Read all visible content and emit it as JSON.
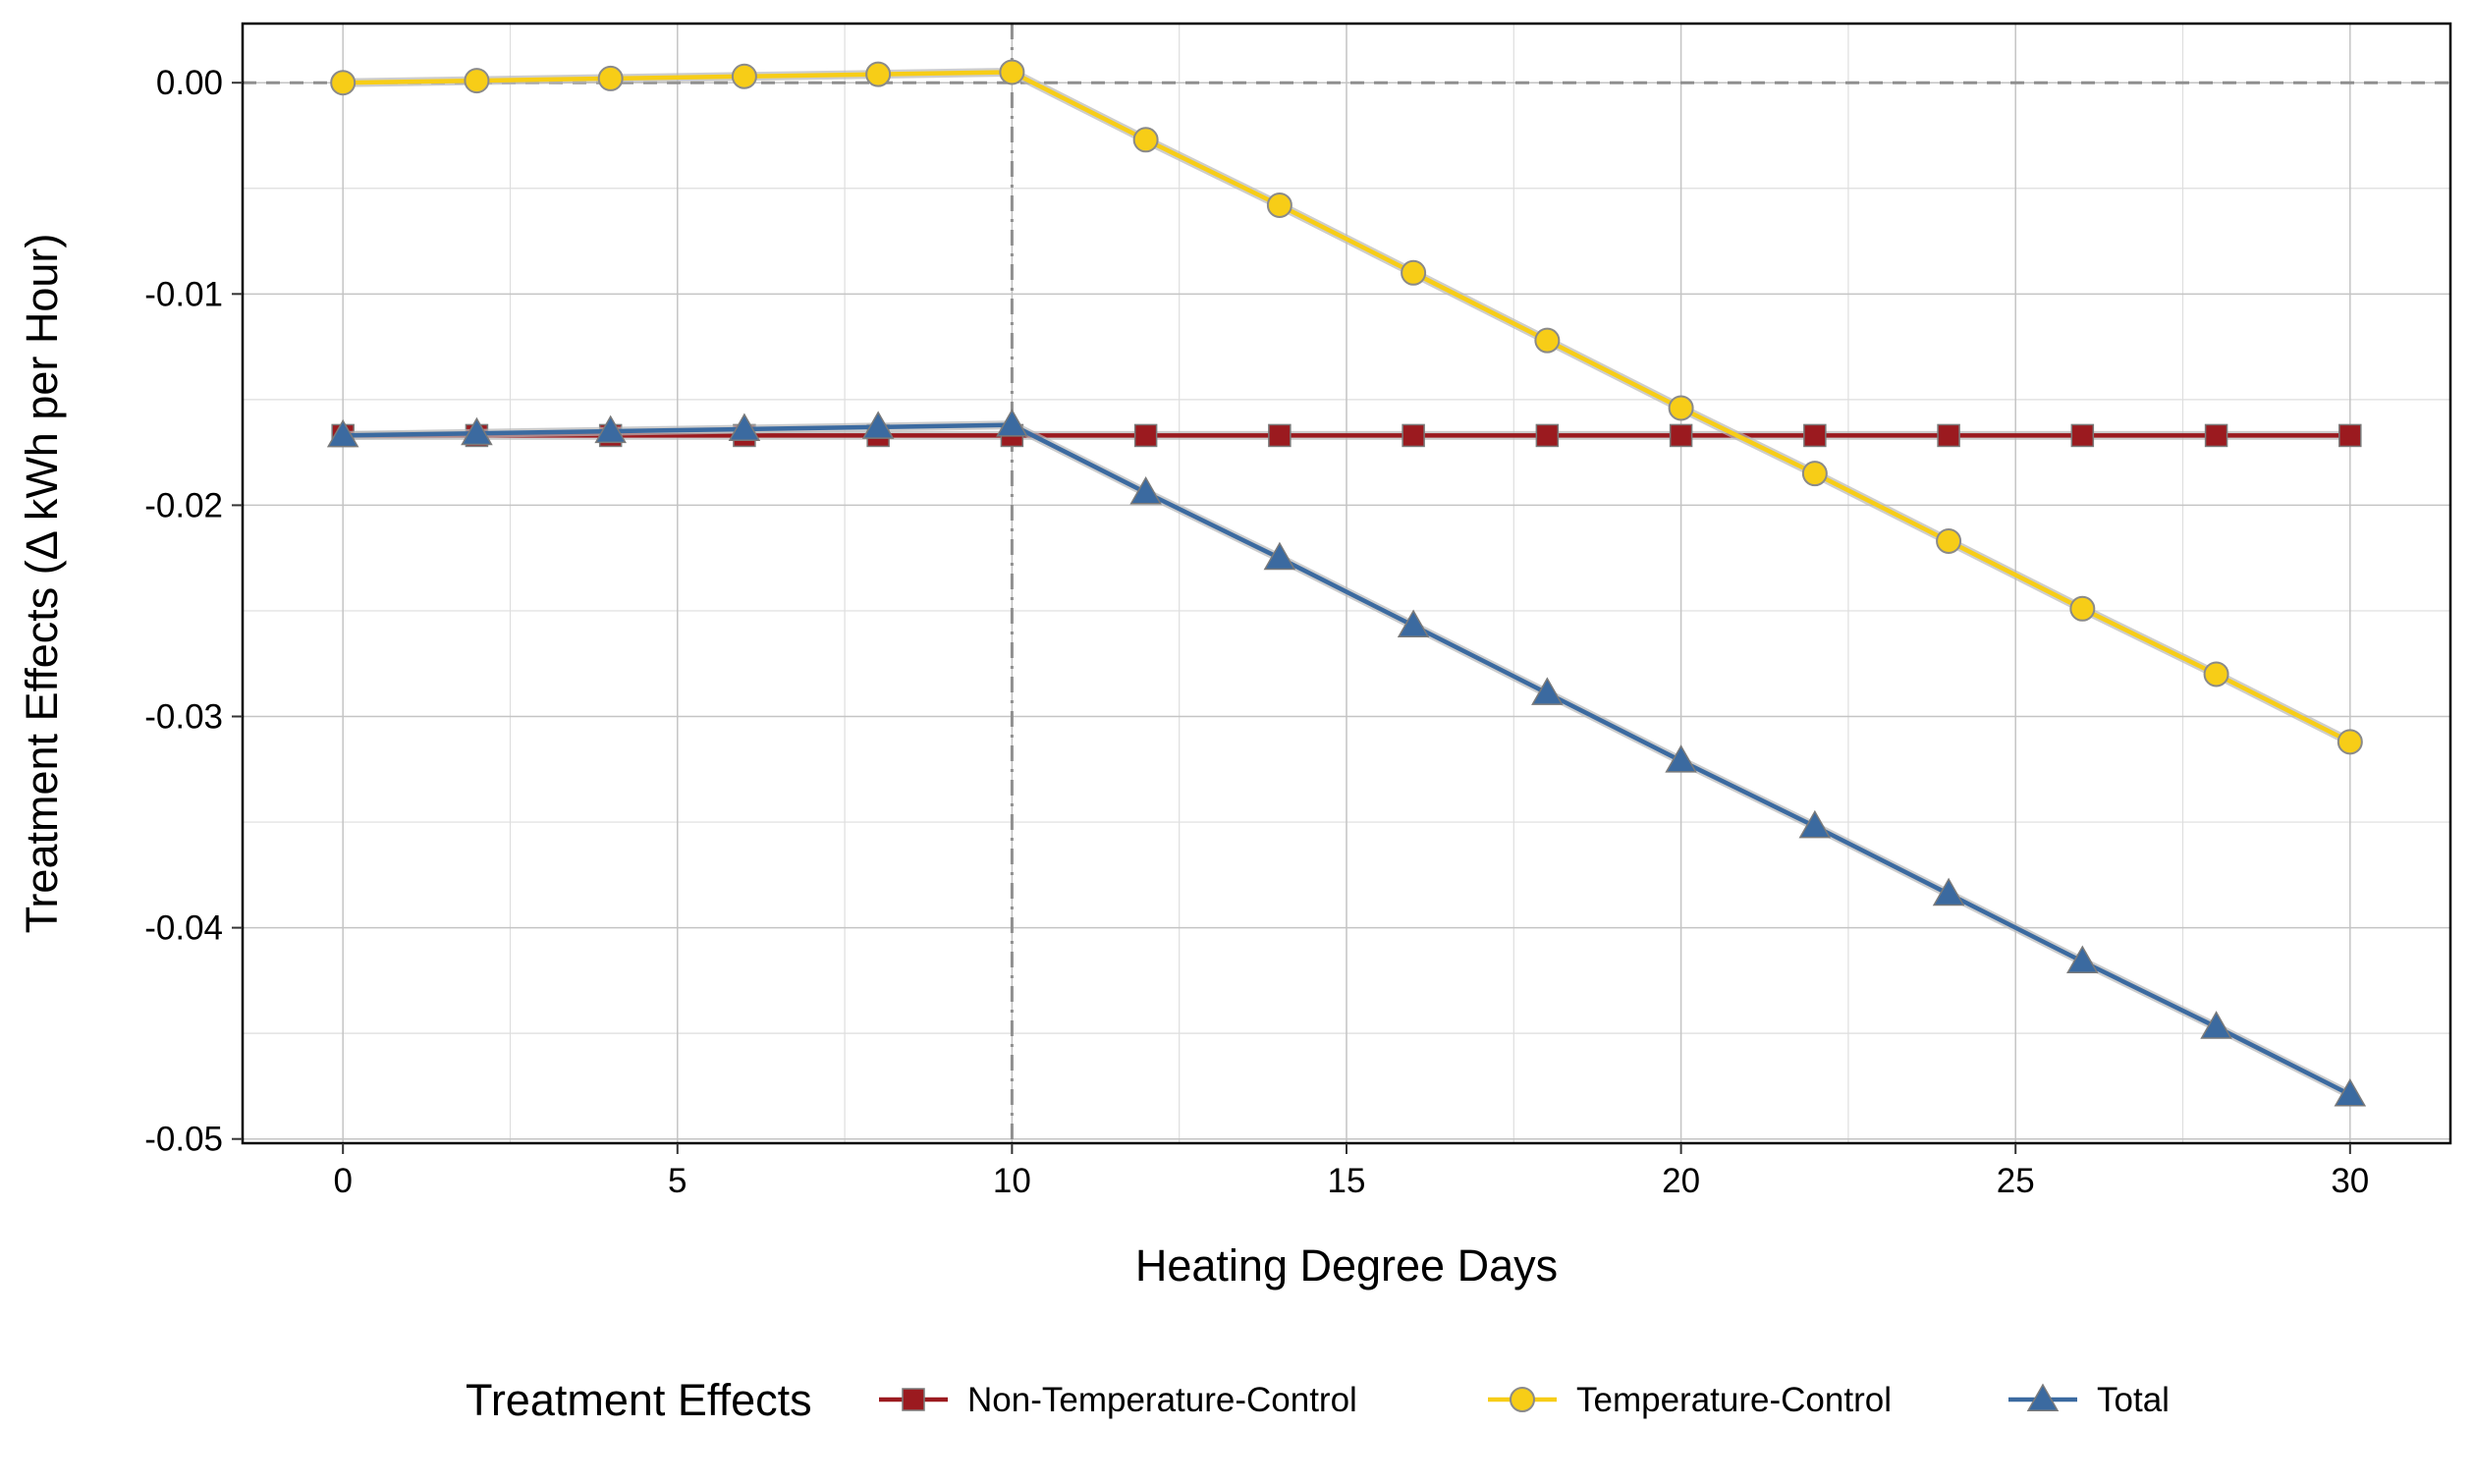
{
  "chart_data": {
    "type": "line",
    "xlabel": "Heating Degree Days",
    "ylabel": "Treatment Effects (Δ kWh per Hour)",
    "xlim": [
      -1.5,
      31.5
    ],
    "ylim": [
      -0.0502,
      0.0028
    ],
    "x_ticks": [
      0,
      5,
      10,
      15,
      20,
      25,
      30
    ],
    "x_tick_labels": [
      "0",
      "5",
      "10",
      "15",
      "20",
      "25",
      "30"
    ],
    "y_ticks": [
      0.0,
      -0.01,
      -0.02,
      -0.03,
      -0.04,
      -0.05
    ],
    "y_tick_labels": [
      "0.00",
      "-0.01",
      "-0.02",
      "-0.03",
      "-0.04",
      "-0.05"
    ],
    "grid": true,
    "reference_lines": {
      "horizontal_y": 0,
      "vertical_x": 10
    },
    "x": [
      0,
      2,
      4,
      6,
      8,
      10,
      12,
      14,
      16,
      18,
      20,
      22,
      24,
      26,
      28,
      30
    ],
    "series": [
      {
        "name": "Non-Temperature-Control",
        "marker": "square",
        "color": "#9b1a1f",
        "values": [
          -0.0167,
          -0.0167,
          -0.0167,
          -0.0167,
          -0.0167,
          -0.0167,
          -0.0167,
          -0.0167,
          -0.0167,
          -0.0167,
          -0.0167,
          -0.0167,
          -0.0167,
          -0.0167,
          -0.0167,
          -0.0167
        ]
      },
      {
        "name": "Temperature-Control",
        "marker": "circle",
        "color": "#f7cd17",
        "values": [
          0.0,
          0.0001,
          0.0002,
          0.0003,
          0.0004,
          0.0005,
          -0.0027,
          -0.0058,
          -0.009,
          -0.0122,
          -0.0154,
          -0.0185,
          -0.0217,
          -0.0249,
          -0.028,
          -0.0312
        ]
      },
      {
        "name": "Total",
        "marker": "triangle",
        "color": "#3b6aa0",
        "values": [
          -0.0167,
          -0.0166,
          -0.0165,
          -0.0164,
          -0.0163,
          -0.0162,
          -0.0194,
          -0.0225,
          -0.0257,
          -0.0289,
          -0.0321,
          -0.0352,
          -0.0384,
          -0.0416,
          -0.0447,
          -0.0479
        ]
      }
    ],
    "legend": {
      "title": "Treatment Effects",
      "position": "bottom"
    }
  }
}
